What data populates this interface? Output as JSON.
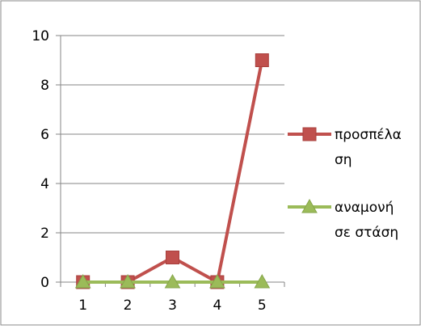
{
  "chart_data": {
    "type": "line",
    "title": "",
    "xlabel": "",
    "ylabel": "",
    "x": [
      "1",
      "2",
      "3",
      "4",
      "5"
    ],
    "ylim": [
      0,
      10
    ],
    "yticks": [
      "0",
      "2",
      "4",
      "6",
      "8",
      "10"
    ],
    "grid": true,
    "legend_position": "right",
    "series": [
      {
        "name_lines": [
          "προσπέλα",
          "ση"
        ],
        "values": [
          0,
          0,
          1,
          0,
          9
        ],
        "color": "#C0504D",
        "marker": "square"
      },
      {
        "name_lines": [
          "αναμονή",
          "σε στάση"
        ],
        "values": [
          0,
          0,
          0,
          0,
          0
        ],
        "color": "#9BBB59",
        "marker": "triangle"
      }
    ]
  }
}
